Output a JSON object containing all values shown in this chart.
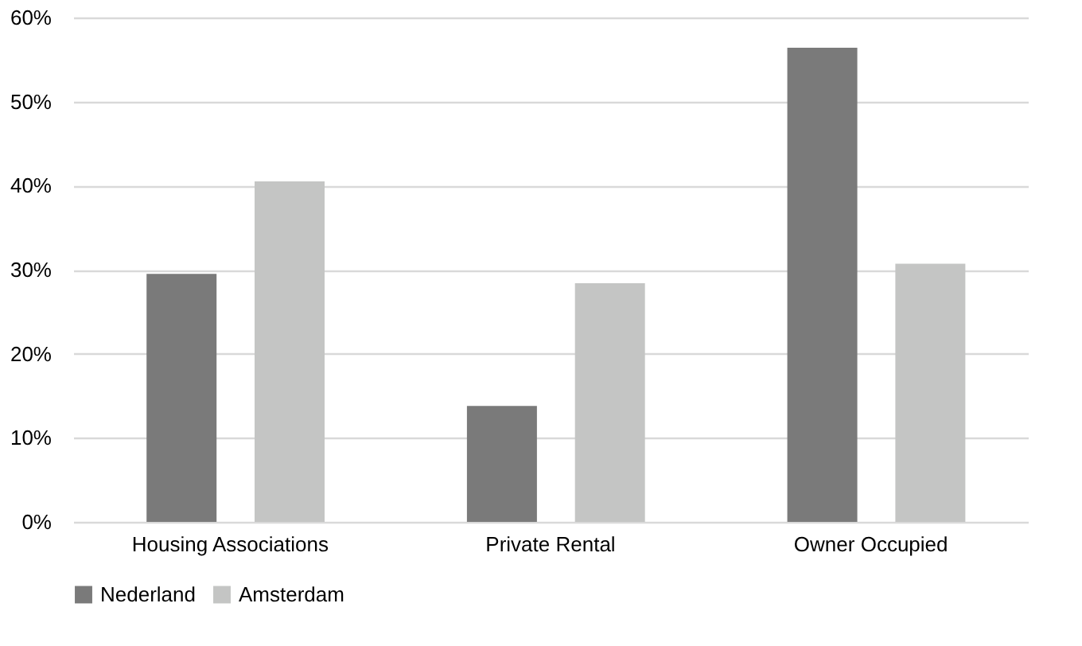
{
  "chart_data": {
    "type": "bar",
    "categories": [
      "Housing Associations",
      "Private Rental",
      "Owner Occupied"
    ],
    "series": [
      {
        "name": "Nederland",
        "color": "#7a7a7a",
        "values": [
          29.5,
          13.8,
          56.4
        ]
      },
      {
        "name": "Amsterdam",
        "color": "#c4c5c4",
        "values": [
          40.5,
          28.4,
          30.7
        ]
      }
    ],
    "ylim": [
      0,
      60
    ],
    "yticks": [
      {
        "value": 0,
        "label": "0%"
      },
      {
        "value": 10,
        "label": "10%"
      },
      {
        "value": 20,
        "label": "20%"
      },
      {
        "value": 30,
        "label": "30%"
      },
      {
        "value": 40,
        "label": "40%"
      },
      {
        "value": 50,
        "label": "50%"
      },
      {
        "value": 60,
        "label": "60%"
      }
    ],
    "grid": "y",
    "legend": "bottom"
  }
}
